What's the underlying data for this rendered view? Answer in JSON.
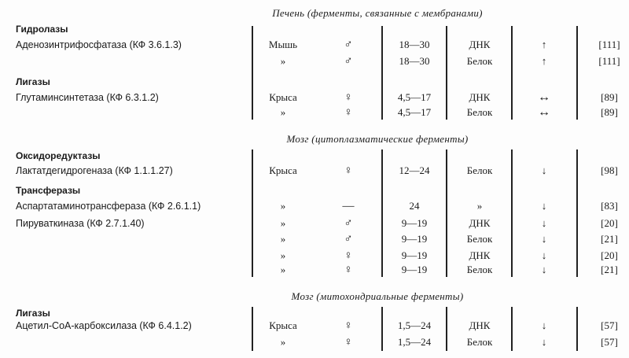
{
  "sections": [
    {
      "title": "Печень (ферменты, связанные с мембранами)",
      "groups": [
        {
          "name": "Гидролазы",
          "enzymes": [
            {
              "name": "Аденозинтрифосфатаза (КФ 3.6.1.3)",
              "rows": [
                [
                  "Мышь",
                  "♂",
                  "18—30",
                  "ДНК",
                  "↑",
                  "[111]"
                ],
                [
                  "»",
                  "♂",
                  "18—30",
                  "Белок",
                  "↑",
                  "[111]"
                ]
              ]
            }
          ]
        },
        {
          "name": "Лигазы",
          "enzymes": [
            {
              "name": "Глутаминсинтетаза (КФ 6.3.1.2)",
              "rows": [
                [
                  "Крыса",
                  "♀",
                  "4,5—17",
                  "ДНК",
                  "↔",
                  "[89]"
                ],
                [
                  "»",
                  "♀",
                  "4,5—17",
                  "Белок",
                  "↔",
                  "[89]"
                ]
              ]
            }
          ]
        }
      ]
    },
    {
      "title": "Мозг (цитоплазматические ферменты)",
      "groups": [
        {
          "name": "Оксидоредуктазы",
          "enzymes": [
            {
              "name": "Лактатдегидрогеназа (КФ 1.1.1.27)",
              "rows": [
                [
                  "Крыса",
                  "♀",
                  "12—24",
                  "Белок",
                  "↓",
                  "[98]"
                ]
              ]
            }
          ]
        },
        {
          "name": "Трансферазы",
          "enzymes": [
            {
              "name": "Аспартатаминотрансфераза (КФ 2.6.1.1)",
              "rows": [
                [
                  "»",
                  "—",
                  "24",
                  "»",
                  "↓",
                  "[83]"
                ]
              ]
            },
            {
              "name": "Пируваткиназа (КФ 2.7.1.40)",
              "rows": [
                [
                  "»",
                  "♂",
                  "9—19",
                  "ДНК",
                  "↓",
                  "[20]"
                ],
                [
                  "»",
                  "♂",
                  "9—19",
                  "Белок",
                  "↓",
                  "[21]"
                ],
                [
                  "»",
                  "♀",
                  "9—19",
                  "ДНК",
                  "↓",
                  "[20]"
                ],
                [
                  "»",
                  "♀",
                  "9—19",
                  "Белок",
                  "↓",
                  "[21]"
                ]
              ]
            }
          ]
        }
      ]
    },
    {
      "title": "Мозг (митохондриальные ферменты)",
      "groups": [
        {
          "name": "Лигазы",
          "enzymes": [
            {
              "name": "Ацетил-СоА-карбоксилаза (КФ 6.4.1.2)",
              "rows": [
                [
                  "Крыса",
                  "♀",
                  "1,5—24",
                  "ДНК",
                  "↓",
                  "[57]"
                ],
                [
                  "»",
                  "♀",
                  "1,5—24",
                  "Белок",
                  "↓",
                  "[57]"
                ]
              ]
            }
          ]
        }
      ]
    }
  ]
}
